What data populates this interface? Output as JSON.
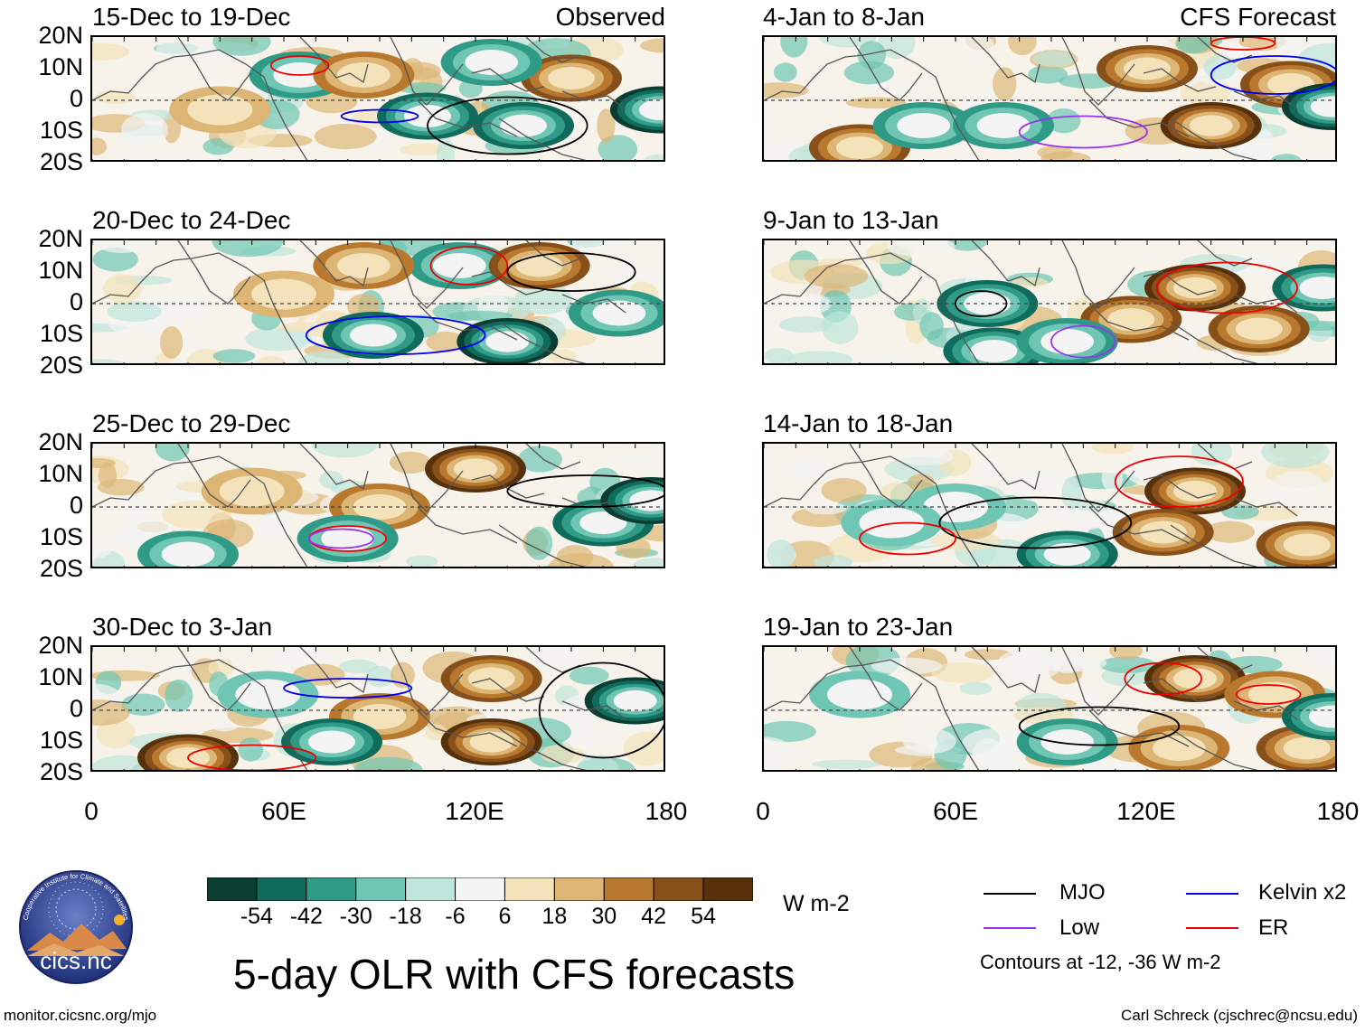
{
  "figure": {
    "title": "5-day OLR with CFS forecasts",
    "left_column_label": "Observed",
    "right_column_label": "CFS Forecast",
    "units": "W m-2",
    "contour_note": "Contours at -12, -36 W m-2",
    "footer_left": "monitor.cicsnc.org/mjo",
    "footer_right": "Carl Schreck (cjschrec@ncsu.edu)",
    "logo_text": "cics.nc",
    "logo_ring_text": "Cooperative Institute for Climate and Satellites"
  },
  "chart_data": {
    "type": "heatmap",
    "variable": "OLR anomaly",
    "units": "W m-2",
    "x_ticks": [
      "0",
      "60E",
      "120E",
      "180"
    ],
    "xlim": [
      0,
      180
    ],
    "y_ticks": [
      "20N",
      "10N",
      "0",
      "10S",
      "20S"
    ],
    "ylim": [
      -20,
      20
    ],
    "colorbar": {
      "levels": [
        "-54",
        "-42",
        "-30",
        "-18",
        "-6",
        "6",
        "18",
        "30",
        "42",
        "54"
      ],
      "colors": [
        "#0b3d32",
        "#0f6b5b",
        "#2f9a86",
        "#6fc6b4",
        "#bfe6dc",
        "#f4f4f4",
        "#f3e2ba",
        "#ddb676",
        "#b8792e",
        "#87501a",
        "#57310b"
      ]
    },
    "legend": [
      {
        "label": "MJO",
        "color": "#000000"
      },
      {
        "label": "Kelvin x2",
        "color": "#0000ee"
      },
      {
        "label": "Low",
        "color": "#9933ee"
      },
      {
        "label": "ER",
        "color": "#ee0000"
      }
    ],
    "panels": [
      {
        "title": "15-Dec to 19-Dec",
        "source": "Observed",
        "anomalies": [
          {
            "lon": 65,
            "lat": 8,
            "v": -30
          },
          {
            "lon": 105,
            "lat": -5,
            "v": -42
          },
          {
            "lon": 135,
            "lat": -8,
            "v": -42
          },
          {
            "lon": 178,
            "lat": -3,
            "v": -54
          },
          {
            "lon": 150,
            "lat": 7,
            "v": 42
          },
          {
            "lon": 85,
            "lat": 8,
            "v": 30
          },
          {
            "lon": 40,
            "lat": -3,
            "v": 18
          },
          {
            "lon": 125,
            "lat": 12,
            "v": -30
          }
        ],
        "contours": [
          {
            "type": "ER",
            "lon": 65,
            "lat": 11,
            "rx": 9,
            "ry": 3
          },
          {
            "type": "MJO",
            "lon": 130,
            "lat": -8,
            "rx": 25,
            "ry": 9
          },
          {
            "type": "Kelvin x2",
            "lon": 90,
            "lat": -5,
            "rx": 12,
            "ry": 2
          }
        ]
      },
      {
        "title": "20-Dec to 24-Dec",
        "source": "Observed",
        "anomalies": [
          {
            "lon": 88,
            "lat": -10,
            "v": -42
          },
          {
            "lon": 130,
            "lat": -12,
            "v": -54
          },
          {
            "lon": 165,
            "lat": -3,
            "v": -30
          },
          {
            "lon": 115,
            "lat": 12,
            "v": -30
          },
          {
            "lon": 85,
            "lat": 12,
            "v": 30
          },
          {
            "lon": 140,
            "lat": 12,
            "v": 42
          },
          {
            "lon": 60,
            "lat": 3,
            "v": 18
          }
        ],
        "contours": [
          {
            "type": "ER",
            "lon": 118,
            "lat": 12,
            "rx": 12,
            "ry": 6
          },
          {
            "type": "Kelvin x2",
            "lon": 95,
            "lat": -10,
            "rx": 28,
            "ry": 6
          },
          {
            "type": "MJO",
            "lon": 150,
            "lat": 10,
            "rx": 20,
            "ry": 6
          }
        ]
      },
      {
        "title": "25-Dec to 29-Dec",
        "source": "Observed",
        "anomalies": [
          {
            "lon": 120,
            "lat": 12,
            "v": 54
          },
          {
            "lon": 90,
            "lat": 0,
            "v": 30
          },
          {
            "lon": 50,
            "lat": 5,
            "v": 18
          },
          {
            "lon": 160,
            "lat": -5,
            "v": -42
          },
          {
            "lon": 80,
            "lat": -10,
            "v": -30
          },
          {
            "lon": 30,
            "lat": -15,
            "v": -30
          },
          {
            "lon": 175,
            "lat": 2,
            "v": -54
          }
        ],
        "contours": [
          {
            "type": "MJO",
            "lon": 155,
            "lat": 5,
            "rx": 25,
            "ry": 5
          },
          {
            "type": "ER",
            "lon": 80,
            "lat": -10,
            "rx": 12,
            "ry": 4
          },
          {
            "type": "Low",
            "lon": 78,
            "lat": -10,
            "rx": 10,
            "ry": 3
          }
        ]
      },
      {
        "title": "30-Dec to 3-Jan",
        "source": "Observed",
        "anomalies": [
          {
            "lon": 125,
            "lat": 10,
            "v": 42
          },
          {
            "lon": 125,
            "lat": -10,
            "v": 54
          },
          {
            "lon": 30,
            "lat": -15,
            "v": 54
          },
          {
            "lon": 90,
            "lat": -2,
            "v": 30
          },
          {
            "lon": 170,
            "lat": 3,
            "v": -54
          },
          {
            "lon": 75,
            "lat": -10,
            "v": -42
          },
          {
            "lon": 55,
            "lat": 5,
            "v": -18
          }
        ],
        "contours": [
          {
            "type": "Kelvin x2",
            "lon": 80,
            "lat": 7,
            "rx": 20,
            "ry": 3
          },
          {
            "type": "MJO",
            "lon": 160,
            "lat": 0,
            "rx": 20,
            "ry": 15
          },
          {
            "type": "ER",
            "lon": 50,
            "lat": -15,
            "rx": 20,
            "ry": 4
          }
        ]
      },
      {
        "title": "4-Jan to 8-Jan",
        "source": "CFS Forecast",
        "anomalies": [
          {
            "lon": 140,
            "lat": -8,
            "v": 54
          },
          {
            "lon": 120,
            "lat": 10,
            "v": 42
          },
          {
            "lon": 165,
            "lat": 5,
            "v": 42
          },
          {
            "lon": 30,
            "lat": -15,
            "v": 42
          },
          {
            "lon": 178,
            "lat": -2,
            "v": -54
          },
          {
            "lon": 50,
            "lat": -8,
            "v": -30
          },
          {
            "lon": 75,
            "lat": -8,
            "v": -30
          }
        ],
        "contours": [
          {
            "type": "Kelvin x2",
            "lon": 160,
            "lat": 8,
            "rx": 20,
            "ry": 6
          },
          {
            "type": "Low",
            "lon": 100,
            "lat": -10,
            "rx": 20,
            "ry": 5
          },
          {
            "type": "ER",
            "lon": 150,
            "lat": 18,
            "rx": 10,
            "ry": 2
          }
        ]
      },
      {
        "title": "9-Jan to 13-Jan",
        "source": "CFS Forecast",
        "anomalies": [
          {
            "lon": 135,
            "lat": 5,
            "v": 54
          },
          {
            "lon": 155,
            "lat": -8,
            "v": 42
          },
          {
            "lon": 115,
            "lat": -5,
            "v": 42
          },
          {
            "lon": 70,
            "lat": 0,
            "v": -42
          },
          {
            "lon": 72,
            "lat": -15,
            "v": -42
          },
          {
            "lon": 95,
            "lat": -12,
            "v": -30
          },
          {
            "lon": 175,
            "lat": 5,
            "v": -42
          }
        ],
        "contours": [
          {
            "type": "MJO",
            "lon": 68,
            "lat": 0,
            "rx": 8,
            "ry": 4
          },
          {
            "type": "ER",
            "lon": 145,
            "lat": 5,
            "rx": 22,
            "ry": 8
          },
          {
            "type": "Low",
            "lon": 100,
            "lat": -12,
            "rx": 10,
            "ry": 5
          }
        ]
      },
      {
        "title": "14-Jan to 18-Jan",
        "source": "CFS Forecast",
        "anomalies": [
          {
            "lon": 135,
            "lat": 5,
            "v": 54
          },
          {
            "lon": 125,
            "lat": -8,
            "v": 42
          },
          {
            "lon": 170,
            "lat": -12,
            "v": 42
          },
          {
            "lon": 95,
            "lat": -15,
            "v": -42
          },
          {
            "lon": 60,
            "lat": 0,
            "v": -18
          },
          {
            "lon": 40,
            "lat": -5,
            "v": -18
          }
        ],
        "contours": [
          {
            "type": "MJO",
            "lon": 85,
            "lat": -5,
            "rx": 30,
            "ry": 8
          },
          {
            "type": "ER",
            "lon": 130,
            "lat": 8,
            "rx": 20,
            "ry": 8
          },
          {
            "type": "ER",
            "lon": 45,
            "lat": -10,
            "rx": 15,
            "ry": 5
          }
        ]
      },
      {
        "title": "19-Jan to 23-Jan",
        "source": "CFS Forecast",
        "anomalies": [
          {
            "lon": 135,
            "lat": 10,
            "v": 54
          },
          {
            "lon": 160,
            "lat": 5,
            "v": 30
          },
          {
            "lon": 130,
            "lat": -12,
            "v": 30
          },
          {
            "lon": 170,
            "lat": -12,
            "v": 42
          },
          {
            "lon": 95,
            "lat": -10,
            "v": -30
          },
          {
            "lon": 178,
            "lat": -2,
            "v": -42
          },
          {
            "lon": 30,
            "lat": 5,
            "v": -18
          }
        ],
        "contours": [
          {
            "type": "MJO",
            "lon": 105,
            "lat": -5,
            "rx": 25,
            "ry": 6
          },
          {
            "type": "ER",
            "lon": 125,
            "lat": 10,
            "rx": 12,
            "ry": 5
          },
          {
            "type": "ER",
            "lon": 158,
            "lat": 5,
            "rx": 10,
            "ry": 3
          }
        ]
      }
    ]
  }
}
